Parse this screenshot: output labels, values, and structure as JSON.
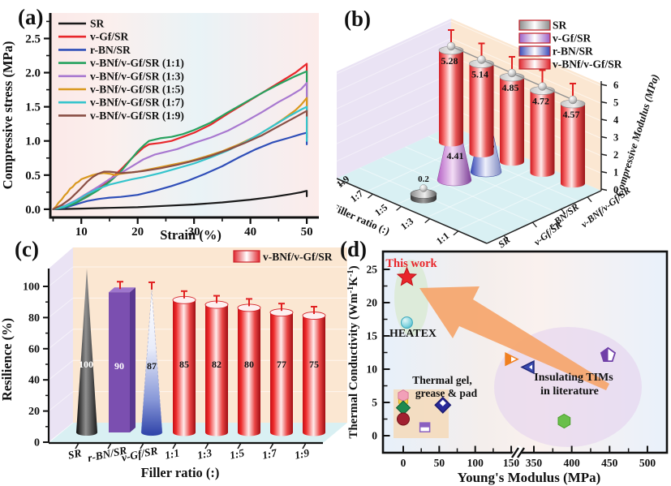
{
  "panels": {
    "a": "(a)",
    "b": "(b)",
    "c": "(c)",
    "d": "(d)"
  },
  "chart_data": [
    {
      "id": "a",
      "type": "line",
      "xlabel": "Strain (%)",
      "ylabel": "Compressive stress (MPa)",
      "xlim": [
        4.5,
        52
      ],
      "ylim": [
        -0.12,
        2.85
      ],
      "xticks": [
        10,
        20,
        30,
        40,
        50
      ],
      "xticks_minor": [
        5,
        15,
        25,
        35,
        45
      ],
      "yticks": [
        0.0,
        0.5,
        1.0,
        1.5,
        2.0,
        2.5
      ],
      "yticks_minor": [
        0.25,
        0.75,
        1.25,
        1.75,
        2.25,
        2.75
      ],
      "legend_position": "top-left",
      "series": [
        {
          "name": "SR",
          "color": "#1a1a1a",
          "points": [
            [
              5,
              0
            ],
            [
              10,
              0.01
            ],
            [
              15,
              0.02
            ],
            [
              20,
              0.03
            ],
            [
              25,
              0.05
            ],
            [
              30,
              0.07
            ],
            [
              35,
              0.1
            ],
            [
              40,
              0.14
            ],
            [
              44,
              0.18
            ],
            [
              47,
              0.22
            ],
            [
              49,
              0.25
            ],
            [
              50,
              0.27
            ],
            [
              50,
              0.19
            ]
          ]
        },
        {
          "name": "v-Gf/SR",
          "color": "#e8282c",
          "points": [
            [
              5,
              0
            ],
            [
              7,
              0.03
            ],
            [
              9,
              0.1
            ],
            [
              11,
              0.2
            ],
            [
              13,
              0.3
            ],
            [
              15,
              0.43
            ],
            [
              17,
              0.58
            ],
            [
              19,
              0.75
            ],
            [
              21,
              0.9
            ],
            [
              22,
              0.95
            ],
            [
              24,
              0.97
            ],
            [
              26,
              1.0
            ],
            [
              28,
              1.06
            ],
            [
              30,
              1.12
            ],
            [
              33,
              1.24
            ],
            [
              36,
              1.4
            ],
            [
              39,
              1.55
            ],
            [
              42,
              1.7
            ],
            [
              45,
              1.85
            ],
            [
              48,
              2.0
            ],
            [
              50,
              2.13
            ],
            [
              50,
              1.05
            ]
          ]
        },
        {
          "name": "r-BN/SR",
          "color": "#2f4eb8",
          "points": [
            [
              5,
              0
            ],
            [
              7,
              0.02
            ],
            [
              9,
              0.07
            ],
            [
              11,
              0.12
            ],
            [
              13,
              0.15
            ],
            [
              15,
              0.17
            ],
            [
              17,
              0.18
            ],
            [
              20,
              0.21
            ],
            [
              23,
              0.27
            ],
            [
              26,
              0.34
            ],
            [
              29,
              0.42
            ],
            [
              32,
              0.52
            ],
            [
              35,
              0.63
            ],
            [
              38,
              0.76
            ],
            [
              41,
              0.88
            ],
            [
              44,
              0.98
            ],
            [
              47,
              1.05
            ],
            [
              49,
              1.1
            ],
            [
              50,
              1.12
            ],
            [
              50,
              0.95
            ]
          ]
        },
        {
          "name": "v-BNf/v-Gf/SR (1:1)",
          "color": "#27a25f",
          "points": [
            [
              5,
              0
            ],
            [
              7,
              0.03
            ],
            [
              9,
              0.09
            ],
            [
              11,
              0.18
            ],
            [
              13,
              0.28
            ],
            [
              15,
              0.4
            ],
            [
              17,
              0.55
            ],
            [
              19,
              0.75
            ],
            [
              20,
              0.85
            ],
            [
              21,
              0.93
            ],
            [
              22,
              1.0
            ],
            [
              24,
              1.04
            ],
            [
              26,
              1.06
            ],
            [
              28,
              1.1
            ],
            [
              30,
              1.16
            ],
            [
              33,
              1.27
            ],
            [
              36,
              1.42
            ],
            [
              39,
              1.56
            ],
            [
              42,
              1.7
            ],
            [
              45,
              1.83
            ],
            [
              48,
              1.95
            ],
            [
              50,
              2.02
            ],
            [
              50,
              1.44
            ]
          ]
        },
        {
          "name": "v-BNf/v-Gf/SR (1:3)",
          "color": "#a878d0",
          "points": [
            [
              5,
              0
            ],
            [
              7,
              0.05
            ],
            [
              9,
              0.13
            ],
            [
              11,
              0.23
            ],
            [
              13,
              0.33
            ],
            [
              15,
              0.44
            ],
            [
              17,
              0.53
            ],
            [
              19,
              0.63
            ],
            [
              21,
              0.73
            ],
            [
              23,
              0.8
            ],
            [
              25,
              0.84
            ],
            [
              27,
              0.88
            ],
            [
              30,
              0.97
            ],
            [
              33,
              1.05
            ],
            [
              36,
              1.15
            ],
            [
              39,
              1.28
            ],
            [
              42,
              1.42
            ],
            [
              45,
              1.57
            ],
            [
              47,
              1.66
            ],
            [
              49,
              1.76
            ],
            [
              50,
              1.85
            ],
            [
              50,
              1.2
            ]
          ]
        },
        {
          "name": "v-BNf/v-Gf/SR (1:5)",
          "color": "#d9981e",
          "points": [
            [
              5,
              0
            ],
            [
              5.5,
              0.04
            ],
            [
              6,
              0.1
            ],
            [
              6.5,
              0.14
            ],
            [
              7,
              0.2
            ],
            [
              7.5,
              0.24
            ],
            [
              8,
              0.3
            ],
            [
              8.5,
              0.33
            ],
            [
              9,
              0.38
            ],
            [
              9.5,
              0.4
            ],
            [
              10,
              0.44
            ],
            [
              11,
              0.47
            ],
            [
              12,
              0.5
            ],
            [
              13,
              0.52
            ],
            [
              14,
              0.53
            ],
            [
              15,
              0.52
            ],
            [
              16,
              0.5
            ],
            [
              17,
              0.52
            ],
            [
              18,
              0.53
            ],
            [
              20,
              0.55
            ],
            [
              23,
              0.6
            ],
            [
              26,
              0.65
            ],
            [
              29,
              0.7
            ],
            [
              32,
              0.77
            ],
            [
              35,
              0.85
            ],
            [
              38,
              0.95
            ],
            [
              41,
              1.07
            ],
            [
              44,
              1.22
            ],
            [
              46,
              1.33
            ],
            [
              48,
              1.45
            ],
            [
              49,
              1.53
            ],
            [
              50,
              1.63
            ],
            [
              50,
              1.1
            ]
          ]
        },
        {
          "name": "v-BNf/v-Gf/SR (1:7)",
          "color": "#35c4cc",
          "points": [
            [
              5,
              0
            ],
            [
              7,
              0.04
            ],
            [
              9,
              0.12
            ],
            [
              11,
              0.22
            ],
            [
              13,
              0.3
            ],
            [
              15,
              0.36
            ],
            [
              17,
              0.4
            ],
            [
              19,
              0.44
            ],
            [
              21,
              0.47
            ],
            [
              24,
              0.53
            ],
            [
              27,
              0.6
            ],
            [
              30,
              0.67
            ],
            [
              33,
              0.76
            ],
            [
              36,
              0.86
            ],
            [
              39,
              0.98
            ],
            [
              42,
              1.12
            ],
            [
              45,
              1.27
            ],
            [
              47,
              1.37
            ],
            [
              49,
              1.46
            ],
            [
              50,
              1.5
            ],
            [
              50,
              1.0
            ]
          ]
        },
        {
          "name": "v-BNf/v-Gf/SR (1:9)",
          "color": "#8a4f45",
          "points": [
            [
              5,
              0
            ],
            [
              6.5,
              0.06
            ],
            [
              8,
              0.15
            ],
            [
              9.5,
              0.27
            ],
            [
              11,
              0.4
            ],
            [
              12,
              0.47
            ],
            [
              13,
              0.52
            ],
            [
              14,
              0.55
            ],
            [
              15,
              0.55
            ],
            [
              16,
              0.54
            ],
            [
              17,
              0.53
            ],
            [
              19,
              0.54
            ],
            [
              21,
              0.56
            ],
            [
              24,
              0.6
            ],
            [
              27,
              0.65
            ],
            [
              30,
              0.71
            ],
            [
              33,
              0.78
            ],
            [
              36,
              0.87
            ],
            [
              39,
              0.97
            ],
            [
              42,
              1.08
            ],
            [
              44,
              1.17
            ],
            [
              46,
              1.26
            ],
            [
              48,
              1.35
            ],
            [
              50,
              1.44
            ],
            [
              50,
              1.37
            ]
          ]
        }
      ]
    },
    {
      "id": "b",
      "type": "bar3d",
      "zlabel": "Compressive Modulus (MPa)",
      "xlabel": "Filler ratio (:)",
      "zticks": [
        0,
        1,
        2,
        3,
        4,
        5,
        6
      ],
      "ratio_labels": [
        "1:9",
        "1:7",
        "1:5",
        "1:3",
        "1:1"
      ],
      "series_axis_labels": [
        "SR",
        "v-Gf/SR",
        "r-BN/SR",
        "v-BNf/v-Gf/SR"
      ],
      "legend": [
        {
          "label": "SR",
          "color": "#8a8a8a"
        },
        {
          "label": "v-Gf/SR",
          "color": "#9a5fc5"
        },
        {
          "label": "r-BN/SR",
          "color": "#3a4ab8"
        },
        {
          "label": "v-BNf/v-Gf/SR",
          "color": "#e02830"
        }
      ],
      "bars": [
        {
          "label": "SR",
          "value": 0.2,
          "shape": "disk"
        },
        {
          "label": "v-Gf/SR",
          "value": 4.41,
          "shape": "cone-purple"
        },
        {
          "label": "r-BN/SR",
          "value": 4.05,
          "shape": "cone-blue"
        },
        {
          "label": "1:1",
          "value": 5.28,
          "shape": "cylinder"
        },
        {
          "label": "1:3",
          "value": 5.14,
          "shape": "cylinder"
        },
        {
          "label": "1:5",
          "value": 4.85,
          "shape": "cylinder"
        },
        {
          "label": "1:7",
          "value": 4.72,
          "shape": "cylinder"
        },
        {
          "label": "1:9",
          "value": 4.57,
          "shape": "cylinder"
        }
      ]
    },
    {
      "id": "c",
      "type": "bar3d",
      "ylabel": "Resilience (%)",
      "xlabel": "Filler ratio (:)",
      "yticks": [
        0,
        20,
        40,
        60,
        80,
        100
      ],
      "yticks_minor": [
        10,
        30,
        50,
        70,
        90
      ],
      "categories": [
        "SR",
        "r-BN/SR",
        "v-Gf/SR",
        "1:1",
        "1:3",
        "1:5",
        "1:7",
        "1:9"
      ],
      "values": [
        100,
        90,
        87,
        85,
        82,
        80,
        77,
        75
      ],
      "shapes": [
        "cone-black",
        "box-purple",
        "cone-blue",
        "cylinder",
        "cylinder",
        "cylinder",
        "cylinder",
        "cylinder"
      ],
      "legend": [
        {
          "label": "v-BNf/v-Gf/SR",
          "color": "#e02830"
        }
      ]
    },
    {
      "id": "d",
      "type": "scatter",
      "xlabel": "Young's Modulus (MPa)",
      "ylabel": "Thermal Conductivity (Wm⁻¹K⁻¹)",
      "xticks": [
        0,
        50,
        100,
        150,
        350,
        400,
        450,
        500
      ],
      "xticks_minor": [
        25,
        75,
        125,
        375,
        425,
        475
      ],
      "yticks": [
        0,
        5,
        10,
        15,
        20,
        25
      ],
      "yticks_minor": [
        2.5,
        7.5,
        12.5,
        17.5,
        22.5
      ],
      "axis_break_x": [
        150,
        350
      ],
      "annotations": {
        "this_work": "This work",
        "heatex": "HEATEX",
        "gel_line1": "Thermal gel,",
        "gel_line2": "grease & pad",
        "tims_line1": "Insulating TIMs",
        "tims_line2": "in literature"
      },
      "points": [
        {
          "name": "this-work",
          "x": 5,
          "y": 23.8,
          "marker": "star",
          "color": "#e8262a"
        },
        {
          "name": "heatex",
          "x": 5,
          "y": 17,
          "marker": "sphere-circle",
          "color": "#58bece"
        },
        {
          "name": "gel-hexagon-pink-yellow",
          "x": 0,
          "y": 5.9,
          "marker": "hexagon-pink-yellow",
          "color": "#f2a0b8"
        },
        {
          "name": "gel-diamond-green",
          "x": 0,
          "y": 4.2,
          "marker": "diamond",
          "color": "#1f8a50"
        },
        {
          "name": "gel-circle-darkred",
          "x": 0,
          "y": 2.5,
          "marker": "circle",
          "color": "#a12030"
        },
        {
          "name": "gel-diamond-navy",
          "x": 55,
          "y": 4.6,
          "marker": "diamond-hollow",
          "color": "#2a2a9a"
        },
        {
          "name": "gel-square-purple",
          "x": 30,
          "y": 1.2,
          "marker": "square-half",
          "color": "#8a60c0"
        },
        {
          "name": "tim-triangle-orange",
          "x": 150,
          "y": 11.5,
          "marker": "triangle-right-half",
          "color": "#f08020"
        },
        {
          "name": "tim-triangle-blue",
          "x": 300,
          "y": 10.3,
          "marker": "triangle-left",
          "color": "#3a4ab0"
        },
        {
          "name": "tim-pentagon-purple",
          "x": 448,
          "y": 12.1,
          "marker": "pentagon-half",
          "color": "#7040a8"
        },
        {
          "name": "tim-hexagon-green",
          "x": 390,
          "y": 2.2,
          "marker": "hexagon",
          "color": "#6abf4b"
        }
      ]
    }
  ]
}
